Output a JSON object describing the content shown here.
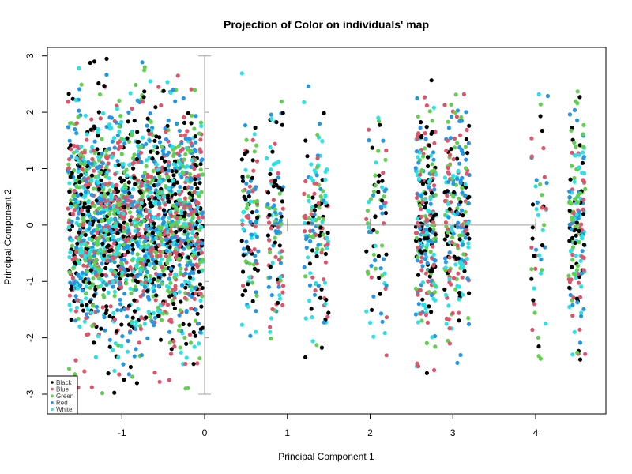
{
  "chart_data": {
    "type": "scatter",
    "title": "Projection of Color on individuals' map",
    "xlabel": "Principal Component 1",
    "ylabel": "Principal Component 2",
    "xlim": [
      -1.9,
      4.85
    ],
    "ylim": [
      -3.35,
      3.15
    ],
    "xticks": [
      -1,
      0,
      1,
      2,
      3,
      4
    ],
    "yticks": [
      -3,
      -2,
      -1,
      0,
      1,
      2,
      3
    ],
    "legend_position": "bottom-left",
    "series": [
      {
        "name": "Black",
        "color": "#000000"
      },
      {
        "name": "Blue",
        "color": "#DF536B"
      },
      {
        "name": "Green",
        "color": "#61D04F"
      },
      {
        "name": "Red",
        "color": "#2297E6"
      },
      {
        "name": "White",
        "color": "#28E2E5"
      }
    ],
    "clusters": [
      {
        "x_min": -1.65,
        "x_max": -0.02,
        "y_sd": 1.0,
        "y_clip": 3.0,
        "count": 2200
      },
      {
        "x_min": 0.45,
        "x_max": 0.65,
        "y_sd": 0.95,
        "y_clip": 2.7,
        "count": 110
      },
      {
        "x_min": 0.75,
        "x_max": 0.95,
        "y_sd": 0.95,
        "y_clip": 2.7,
        "count": 115
      },
      {
        "x_min": 1.2,
        "x_max": 1.5,
        "y_sd": 0.95,
        "y_clip": 2.6,
        "count": 150
      },
      {
        "x_min": 1.95,
        "x_max": 2.2,
        "y_sd": 0.95,
        "y_clip": 2.5,
        "count": 80
      },
      {
        "x_min": 2.55,
        "x_max": 2.8,
        "y_sd": 1.0,
        "y_clip": 2.7,
        "count": 280
      },
      {
        "x_min": 2.9,
        "x_max": 3.2,
        "y_sd": 1.0,
        "y_clip": 2.6,
        "count": 240
      },
      {
        "x_min": 3.95,
        "x_max": 4.15,
        "y_sd": 1.0,
        "y_clip": 2.4,
        "count": 50
      },
      {
        "x_min": 4.4,
        "x_max": 4.6,
        "y_sd": 1.0,
        "y_clip": 2.4,
        "count": 180
      }
    ],
    "biplot_axes": {
      "vertical": {
        "x": 0,
        "y_from": -3,
        "y_to": 3
      },
      "horizontal": {
        "y": 0,
        "x_from": 0,
        "x_to": 4
      },
      "color": "#a0a0a0"
    }
  }
}
